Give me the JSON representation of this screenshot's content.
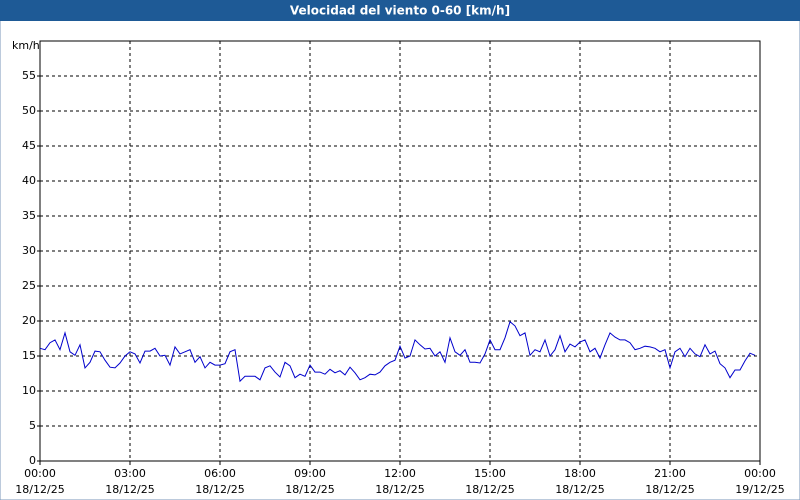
{
  "chart_data": {
    "type": "line",
    "title": "Velocidad del viento 0-60 [km/h]",
    "y_label": "km/h",
    "x": [
      0,
      10,
      20,
      30,
      40,
      50,
      60,
      70,
      80,
      90,
      100,
      110,
      120,
      130,
      140,
      150,
      160,
      170,
      180,
      190,
      200,
      210,
      220,
      230,
      240,
      250,
      260,
      270,
      280,
      290,
      300,
      310,
      320,
      330,
      340,
      350,
      360,
      370,
      380,
      390,
      400,
      410,
      420,
      430,
      440,
      450,
      460,
      470,
      480,
      490,
      500,
      510,
      520,
      530,
      540,
      550,
      560,
      570,
      580,
      590,
      600,
      610,
      620,
      630,
      640,
      650,
      660,
      670,
      680,
      690,
      700,
      710,
      720,
      730,
      740,
      750,
      760,
      770,
      780,
      790,
      800,
      810,
      820,
      830,
      840,
      850,
      860,
      870,
      880,
      890,
      900,
      910,
      920,
      930,
      940,
      950,
      960,
      970,
      980,
      990,
      1000,
      1010,
      1020,
      1030,
      1040,
      1050,
      1060,
      1070,
      1080,
      1090,
      1100,
      1110,
      1120,
      1130,
      1140,
      1150,
      1160,
      1170,
      1180,
      1190,
      1200,
      1210,
      1220,
      1230,
      1240,
      1250,
      1260,
      1270,
      1280,
      1290,
      1300,
      1310,
      1320,
      1330,
      1340,
      1350,
      1360,
      1370,
      1380,
      1390,
      1400,
      1410,
      1420,
      1430
    ],
    "series": [
      {
        "color": "#0000cc",
        "values": [
          16.1,
          15.9,
          16.9,
          17.3,
          15.9,
          18.3,
          15.6,
          15.1,
          16.6,
          13.3,
          14.1,
          15.7,
          15.6,
          14.4,
          13.4,
          13.3,
          14.0,
          15.0,
          15.6,
          15.3,
          14.0,
          15.7,
          15.7,
          16.1,
          15.0,
          15.1,
          13.7,
          16.3,
          15.3,
          15.6,
          15.9,
          14.1,
          14.9,
          13.3,
          14.1,
          13.7,
          13.7,
          13.9,
          15.6,
          15.9,
          11.4,
          12.1,
          12.1,
          12.1,
          11.6,
          13.3,
          13.6,
          12.7,
          12.0,
          14.1,
          13.6,
          11.9,
          12.4,
          12.1,
          13.7,
          12.7,
          12.7,
          12.4,
          13.1,
          12.6,
          12.9,
          12.3,
          13.4,
          12.6,
          11.6,
          11.9,
          12.4,
          12.3,
          12.7,
          13.6,
          14.1,
          14.4,
          16.4,
          14.7,
          15.0,
          17.3,
          16.6,
          16.0,
          16.1,
          15.0,
          15.6,
          14.1,
          17.6,
          15.6,
          15.1,
          15.9,
          14.1,
          14.1,
          14.0,
          15.3,
          17.3,
          15.9,
          15.9,
          17.6,
          19.9,
          19.3,
          17.9,
          18.3,
          15.1,
          15.9,
          15.6,
          17.3,
          15.0,
          15.9,
          17.9,
          15.6,
          16.7,
          16.3,
          17.0,
          17.3,
          15.6,
          16.1,
          14.7,
          16.6,
          18.3,
          17.7,
          17.3,
          17.3,
          16.9,
          15.9,
          16.1,
          16.4,
          16.3,
          16.1,
          15.6,
          15.9,
          13.3,
          15.6,
          16.1,
          14.9,
          16.1,
          15.3,
          14.9,
          16.6,
          15.3,
          15.7,
          13.9,
          13.3,
          11.9,
          13.0,
          13.0,
          14.3,
          15.4,
          15.1
        ]
      }
    ],
    "xlim": [
      0,
      1440
    ],
    "xticks": [
      {
        "value": 0,
        "label": "00:00",
        "date": "18/12/25"
      },
      {
        "value": 180,
        "label": "03:00",
        "date": "18/12/25"
      },
      {
        "value": 360,
        "label": "06:00",
        "date": "18/12/25"
      },
      {
        "value": 540,
        "label": "09:00",
        "date": "18/12/25"
      },
      {
        "value": 720,
        "label": "12:00",
        "date": "18/12/25"
      },
      {
        "value": 900,
        "label": "15:00",
        "date": "18/12/25"
      },
      {
        "value": 1080,
        "label": "18:00",
        "date": "18/12/25"
      },
      {
        "value": 1260,
        "label": "21:00",
        "date": "18/12/25"
      },
      {
        "value": 1440,
        "label": "00:00",
        "date": "19/12/25"
      }
    ],
    "ylim": [
      0,
      60
    ],
    "yticks": [
      0,
      5,
      10,
      15,
      20,
      25,
      30,
      35,
      40,
      45,
      50,
      55
    ],
    "grid": true
  }
}
